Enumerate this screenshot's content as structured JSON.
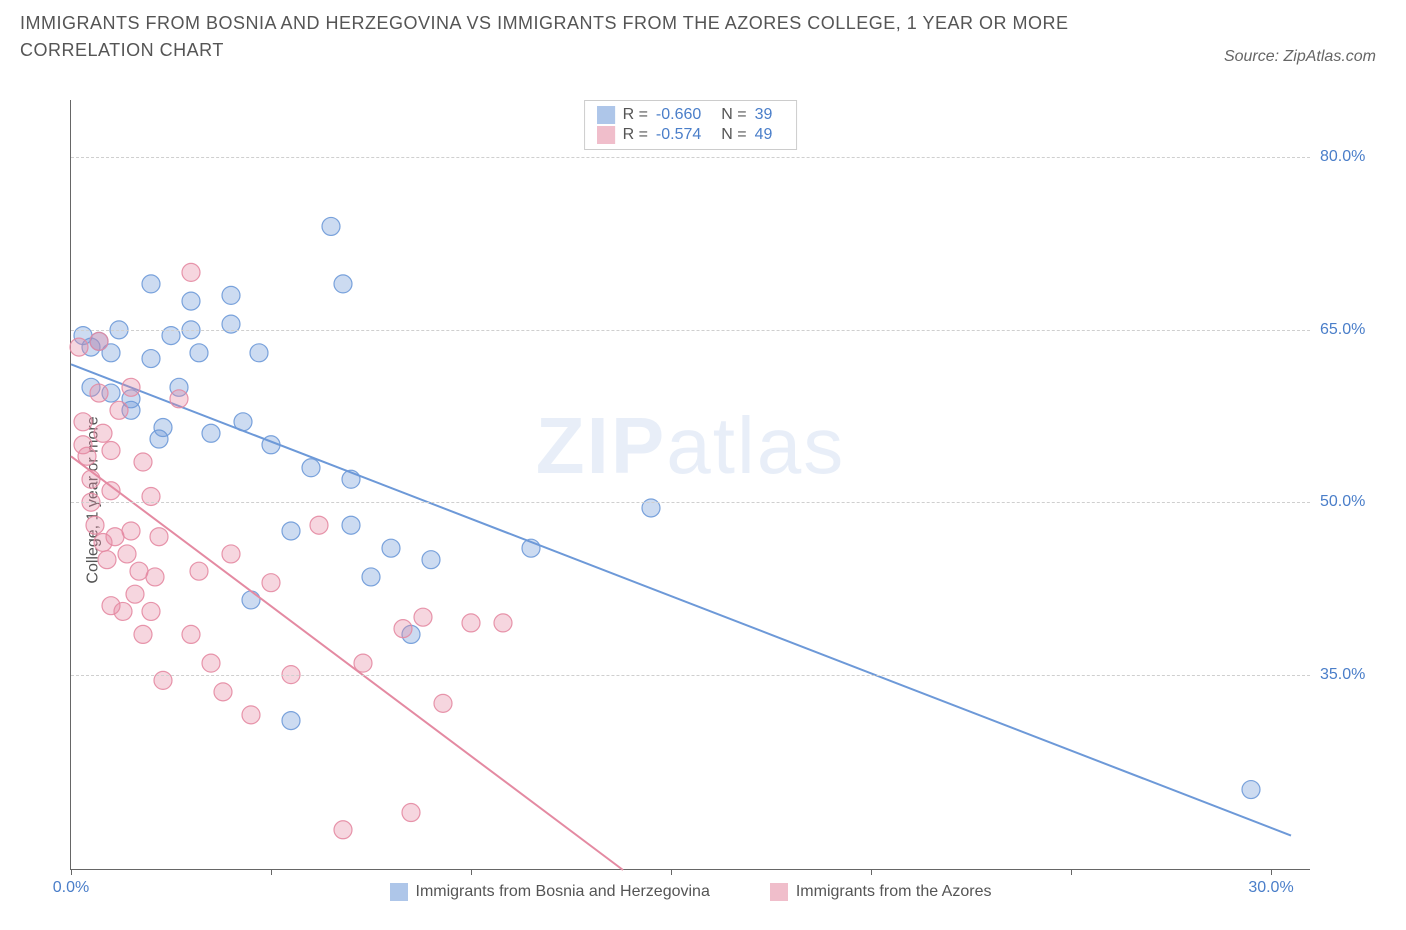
{
  "title": "IMMIGRANTS FROM BOSNIA AND HERZEGOVINA VS IMMIGRANTS FROM THE AZORES COLLEGE, 1 YEAR OR MORE CORRELATION CHART",
  "source": "Source: ZipAtlas.com",
  "watermark_zip": "ZIP",
  "watermark_atlas": "atlas",
  "chart": {
    "type": "scatter",
    "ylabel": "College, 1 year or more",
    "background_color": "#ffffff",
    "grid_color": "#cfcfcf",
    "axis_color": "#666666",
    "label_color": "#4a7ec9",
    "text_color": "#555555",
    "xlim": [
      0.0,
      31.0
    ],
    "ylim": [
      18.0,
      85.0
    ],
    "ytick_values": [
      35.0,
      50.0,
      65.0,
      80.0
    ],
    "ytick_labels": [
      "35.0%",
      "50.0%",
      "65.0%",
      "80.0%"
    ],
    "xtick_values": [
      0.0,
      5.0,
      10.0,
      15.0,
      20.0,
      25.0,
      30.0
    ],
    "xtick_labels": [
      "0.0%",
      "",
      "",
      "",
      "",
      "",
      "30.0%"
    ],
    "marker_radius": 9,
    "marker_fill_opacity": 0.35,
    "marker_stroke_opacity": 0.9,
    "line_width": 2,
    "series": [
      {
        "name": "Immigrants from Bosnia and Herzegovina",
        "color": "#6d99d8",
        "stats": {
          "R": "-0.660",
          "N": "39"
        },
        "regression": {
          "x1": 0.0,
          "y1": 62.0,
          "x2": 30.5,
          "y2": 21.0
        },
        "points": [
          [
            0.3,
            64.5
          ],
          [
            0.5,
            63.5
          ],
          [
            0.5,
            60.0
          ],
          [
            0.7,
            64.0
          ],
          [
            1.0,
            63.0
          ],
          [
            1.0,
            59.5
          ],
          [
            1.2,
            65.0
          ],
          [
            1.5,
            58.0
          ],
          [
            1.5,
            59.0
          ],
          [
            2.0,
            62.5
          ],
          [
            2.0,
            69.0
          ],
          [
            2.2,
            55.5
          ],
          [
            2.3,
            56.5
          ],
          [
            2.5,
            64.5
          ],
          [
            2.7,
            60.0
          ],
          [
            3.0,
            65.0
          ],
          [
            3.0,
            67.5
          ],
          [
            3.2,
            63.0
          ],
          [
            3.5,
            56.0
          ],
          [
            4.0,
            65.5
          ],
          [
            4.0,
            68.0
          ],
          [
            4.3,
            57.0
          ],
          [
            4.5,
            41.5
          ],
          [
            4.7,
            63.0
          ],
          [
            5.0,
            55.0
          ],
          [
            5.5,
            31.0
          ],
          [
            5.5,
            47.5
          ],
          [
            6.0,
            53.0
          ],
          [
            6.5,
            74.0
          ],
          [
            7.0,
            52.0
          ],
          [
            7.0,
            48.0
          ],
          [
            7.5,
            43.5
          ],
          [
            8.0,
            46.0
          ],
          [
            8.5,
            38.5
          ],
          [
            9.0,
            45.0
          ],
          [
            11.5,
            46.0
          ],
          [
            14.5,
            49.5
          ],
          [
            6.8,
            69.0
          ],
          [
            29.5,
            25.0
          ]
        ]
      },
      {
        "name": "Immigrants from the Azores",
        "color": "#e48aa2",
        "stats": {
          "R": "-0.574",
          "N": "49"
        },
        "regression": {
          "x1": 0.0,
          "y1": 54.0,
          "x2": 13.8,
          "y2": 18.0
        },
        "points": [
          [
            0.2,
            63.5
          ],
          [
            0.3,
            57.0
          ],
          [
            0.3,
            55.0
          ],
          [
            0.4,
            54.0
          ],
          [
            0.5,
            52.0
          ],
          [
            0.5,
            50.0
          ],
          [
            0.6,
            48.0
          ],
          [
            0.7,
            59.5
          ],
          [
            0.7,
            64.0
          ],
          [
            0.8,
            56.0
          ],
          [
            0.8,
            46.5
          ],
          [
            0.9,
            45.0
          ],
          [
            1.0,
            54.5
          ],
          [
            1.0,
            51.0
          ],
          [
            1.0,
            41.0
          ],
          [
            1.1,
            47.0
          ],
          [
            1.2,
            58.0
          ],
          [
            1.3,
            40.5
          ],
          [
            1.4,
            45.5
          ],
          [
            1.5,
            60.0
          ],
          [
            1.5,
            47.5
          ],
          [
            1.6,
            42.0
          ],
          [
            1.7,
            44.0
          ],
          [
            1.8,
            53.5
          ],
          [
            1.8,
            38.5
          ],
          [
            2.0,
            40.5
          ],
          [
            2.0,
            50.5
          ],
          [
            2.1,
            43.5
          ],
          [
            2.2,
            47.0
          ],
          [
            2.3,
            34.5
          ],
          [
            2.7,
            59.0
          ],
          [
            3.0,
            38.5
          ],
          [
            3.0,
            70.0
          ],
          [
            3.2,
            44.0
          ],
          [
            3.5,
            36.0
          ],
          [
            3.8,
            33.5
          ],
          [
            4.0,
            45.5
          ],
          [
            4.5,
            31.5
          ],
          [
            5.0,
            43.0
          ],
          [
            5.5,
            35.0
          ],
          [
            6.2,
            48.0
          ],
          [
            6.8,
            21.5
          ],
          [
            7.3,
            36.0
          ],
          [
            8.3,
            39.0
          ],
          [
            8.5,
            23.0
          ],
          [
            8.8,
            40.0
          ],
          [
            9.3,
            32.5
          ],
          [
            10.0,
            39.5
          ],
          [
            10.8,
            39.5
          ]
        ]
      }
    ],
    "legend_labels": {
      "series1": "Immigrants from Bosnia and Herzegovina",
      "series2": "Immigrants from the Azores"
    },
    "stats_labels": {
      "R": "R =",
      "N": "N ="
    }
  }
}
